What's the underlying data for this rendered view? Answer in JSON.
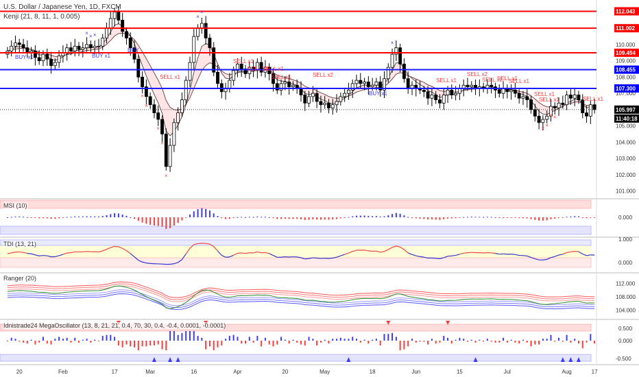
{
  "chart_title": "U.S. Dollar / Japanese Yen, 1D, FXCM",
  "indicator_label": "Kenji (21, 8, 11, 1, 0.005)",
  "colors": {
    "up": "#ffffff",
    "down": "#000000",
    "resistance": "#ff0000",
    "support": "#1a1aff",
    "sell": "#ff3b3b",
    "buy": "#3b3bff",
    "tag_red": "#ff0000",
    "tag_blue": "#0000ff",
    "tag_black": "#000000"
  },
  "chart_data": [
    {
      "type": "candlestick",
      "title": "U.S. Dollar / Japanese Yen, 1D, FXCM",
      "ylim": [
        100.6,
        112.4
      ],
      "y_ticks": [
        "112.000",
        "111.000",
        "110.000",
        "109.000",
        "108.000",
        "107.000",
        "106.000",
        "105.000",
        "104.000",
        "103.000",
        "102.000",
        "101.000"
      ],
      "x_ticks": [
        "20",
        "Feb",
        "17",
        "Mar",
        "16",
        "Apr",
        "20",
        "May",
        "18",
        "Jun",
        "15",
        "Jul",
        "Aug",
        "17"
      ],
      "horizontal_lines": [
        {
          "value": 112.043,
          "color": "red",
          "label": "112.043"
        },
        {
          "value": 111.002,
          "color": "red",
          "label": "111.002"
        },
        {
          "value": 109.494,
          "color": "red",
          "label": "109.494"
        },
        {
          "value": 108.455,
          "color": "blue",
          "label": "108.455"
        },
        {
          "value": 107.3,
          "color": "blue",
          "label": "107.300"
        }
      ],
      "last_price": "105.997",
      "countdown": "11:40:18",
      "signals": [
        {
          "text": "BUY x1"
        },
        {
          "text": "BUY x1"
        },
        {
          "text": "BUY"
        },
        {
          "text": "SELL x1"
        },
        {
          "text": "SELL x1"
        },
        {
          "text": "SELL x1"
        },
        {
          "text": "SELL x1"
        },
        {
          "text": "SELL x1"
        },
        {
          "text": "SELL x2"
        },
        {
          "text": "BUY x1"
        },
        {
          "text": "SELL x1"
        },
        {
          "text": "SELL x2"
        },
        {
          "text": "SELL x2"
        },
        {
          "text": "SELL x1"
        },
        {
          "text": "SELL x1"
        },
        {
          "text": "SELL x1"
        },
        {
          "text": "SELL x1"
        },
        {
          "text": "SELL x1"
        }
      ],
      "closes": [
        109.6,
        109.9,
        110.1,
        110.0,
        109.8,
        109.5,
        109.6,
        109.2,
        109.0,
        109.4,
        109.1,
        108.7,
        108.9,
        109.3,
        109.5,
        109.8,
        109.6,
        109.9,
        109.7,
        109.8,
        110.0,
        109.8,
        109.9,
        109.9,
        110.4,
        111.0,
        111.6,
        112.0,
        111.5,
        110.8,
        110.4,
        109.8,
        109.1,
        108.0,
        107.4,
        106.8,
        106.3,
        105.8,
        105.4,
        104.5,
        102.5,
        103.8,
        105.2,
        105.8,
        106.6,
        107.8,
        108.9,
        110.5,
        111.0,
        111.3,
        110.4,
        109.8,
        108.3,
        107.6,
        107.1,
        107.3,
        107.8,
        108.4,
        108.8,
        108.5,
        108.2,
        108.6,
        108.4,
        108.9,
        108.3,
        108.6,
        108.2,
        107.6,
        107.2,
        107.6,
        107.7,
        107.4,
        107.5,
        107.3,
        106.9,
        106.4,
        106.8,
        107.0,
        106.5,
        106.3,
        106.4,
        106.1,
        106.3,
        106.5,
        106.8,
        107.0,
        107.2,
        107.6,
        107.8,
        107.6,
        107.7,
        107.4,
        107.5,
        107.7,
        107.2,
        107.9,
        108.6,
        109.4,
        109.8,
        108.8,
        107.9,
        107.3,
        107.5,
        107.3,
        107.2,
        107.1,
        106.7,
        106.9,
        106.6,
        106.4,
        106.9,
        107.2,
        106.9,
        107.0,
        107.3,
        107.5,
        107.4,
        107.5,
        107.3,
        107.4,
        107.3,
        107.5,
        107.4,
        107.2,
        107.0,
        107.3,
        107.1,
        107.2,
        107.0,
        106.7,
        106.8,
        106.6,
        106.0,
        105.6,
        105.2,
        105.4,
        105.6,
        106.2,
        106.1,
        106.4,
        106.3,
        106.9,
        106.7,
        106.9,
        106.6,
        105.8,
        105.6,
        106.3,
        106.0
      ]
    },
    {
      "type": "bar",
      "title": "MSI (10)",
      "y_ticks": [
        "0.000"
      ]
    },
    {
      "type": "line",
      "title": "TDI (13, 21)",
      "y_ticks": [
        "1.000",
        "0.000"
      ]
    },
    {
      "type": "line",
      "title": "Ranger (20)",
      "y_ticks": [
        "112.000",
        "108.000",
        "104.000"
      ]
    },
    {
      "type": "bar",
      "title": "Idnistrade24 MegaOscillator (13, 8, 21, 21, 0.4, 70, 30, 0.4, -0.4, 0.0001, -0.0001)",
      "y_ticks": [
        "0.500",
        "0.000",
        "-0.500"
      ]
    }
  ],
  "panes": {
    "msi": "MSI (10)",
    "tdi": "TDI (13, 21)",
    "ranger": "Ranger (20)",
    "mega": "Idnistrade24 MegaOscillator (13, 8, 21, 21, 0.4, 70, 30, 0.4, -0.4, 0.0001, -0.0001)"
  }
}
